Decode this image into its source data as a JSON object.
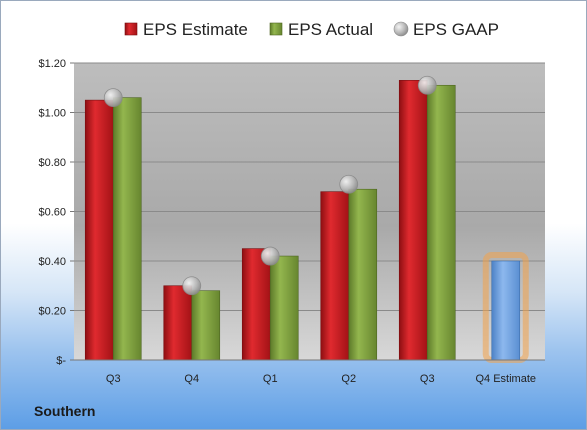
{
  "company": "Southern",
  "colors": {
    "estimate": "#c81a1f",
    "actual": "#7c9e3c",
    "gaap": "#b4b4b4",
    "forecast": "#6c9fdc",
    "forecast_glow": "#f2a24a"
  },
  "chart_data": {
    "type": "bar",
    "categories": [
      "Q3",
      "Q4",
      "Q1",
      "Q2",
      "Q3",
      "Q4 Estimate"
    ],
    "series": [
      {
        "name": "EPS Estimate",
        "values": [
          1.05,
          0.3,
          0.45,
          0.68,
          1.13,
          null
        ]
      },
      {
        "name": "EPS Actual",
        "values": [
          1.06,
          0.28,
          0.42,
          0.69,
          1.11,
          null
        ]
      },
      {
        "name": "EPS GAAP",
        "values": [
          1.06,
          0.3,
          0.42,
          0.71,
          1.11,
          null
        ],
        "marker": "circle"
      }
    ],
    "forecast": {
      "category": "Q4 Estimate",
      "value": 0.4
    },
    "yticks": [
      "$-",
      "$0.20",
      "$0.40",
      "$0.60",
      "$0.80",
      "$1.00",
      "$1.20"
    ],
    "ylim": [
      0,
      1.2
    ],
    "legend": "top",
    "grid": true
  }
}
